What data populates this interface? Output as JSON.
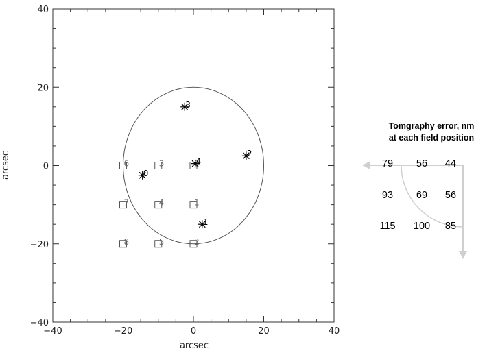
{
  "chart_data": {
    "type": "scatter",
    "xlabel": "arcsec",
    "ylabel": "arcsec",
    "xlim": [
      -40,
      40
    ],
    "ylim": [
      -40,
      40
    ],
    "xticks": [
      "-40",
      "-20",
      "0",
      "20",
      "40"
    ],
    "yticks": [
      "-40",
      "-20",
      "0",
      "20",
      "40"
    ],
    "circle": {
      "center": [
        0,
        0
      ],
      "radius": 20
    },
    "series": [
      {
        "marker": "square",
        "points": [
          {
            "x": 0,
            "y": 0,
            "label": "0"
          },
          {
            "x": 0,
            "y": -10,
            "label": "1"
          },
          {
            "x": 0,
            "y": -20,
            "label": "2"
          },
          {
            "x": -10,
            "y": 0,
            "label": "3"
          },
          {
            "x": -10,
            "y": -10,
            "label": "4"
          },
          {
            "x": -10,
            "y": -20,
            "label": "5"
          },
          {
            "x": -20,
            "y": 0,
            "label": "6"
          },
          {
            "x": -20,
            "y": -10,
            "label": "7"
          },
          {
            "x": -20,
            "y": -20,
            "label": "8"
          }
        ]
      },
      {
        "marker": "asterisk",
        "points": [
          {
            "x": -14.5,
            "y": -2.5,
            "label": "0"
          },
          {
            "x": 2.5,
            "y": -15,
            "label": "1"
          },
          {
            "x": 15,
            "y": 2.5,
            "label": "2"
          },
          {
            "x": -2.5,
            "y": 15,
            "label": "3"
          },
          {
            "x": 0.5,
            "y": 0.5,
            "label": "4"
          }
        ]
      }
    ]
  },
  "error_panel": {
    "title_line1": "Tomgraphy error, nm",
    "title_line2": "at each field position",
    "rows": [
      [
        "79",
        "56",
        "44"
      ],
      [
        "93",
        "69",
        "56"
      ],
      [
        "115",
        "100",
        "85"
      ]
    ]
  }
}
